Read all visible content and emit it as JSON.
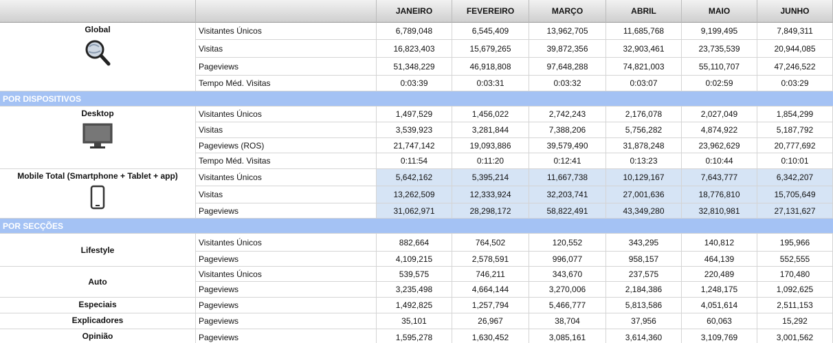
{
  "header": {
    "months": [
      "JANEIRO",
      "FEVEREIRO",
      "MARÇO",
      "ABRIL",
      "MAIO",
      "JUNHO"
    ]
  },
  "blocks": [
    {
      "label": "Global",
      "rows": [
        {
          "metric": "Visitantes Únicos",
          "values": [
            "6,789,048",
            "6,545,409",
            "13,962,705",
            "11,685,768",
            "9,199,495",
            "7,849,311"
          ]
        },
        {
          "metric": "Visitas",
          "values": [
            "16,823,403",
            "15,679,265",
            "39,872,356",
            "32,903,461",
            "23,735,539",
            "20,944,085"
          ]
        },
        {
          "metric": "Pageviews",
          "values": [
            "51,348,229",
            "46,918,808",
            "97,648,288",
            "74,821,003",
            "55,110,707",
            "47,246,522"
          ]
        },
        {
          "metric": "Tempo Méd. Visitas",
          "values": [
            "0:03:39",
            "0:03:31",
            "0:03:32",
            "0:03:07",
            "0:02:59",
            "0:03:29"
          ]
        }
      ]
    },
    {
      "section": "POR DISPOSITIVOS"
    },
    {
      "label": "Desktop",
      "rows": [
        {
          "metric": "Visitantes Únicos",
          "values": [
            "1,497,529",
            "1,456,022",
            "2,742,243",
            "2,176,078",
            "2,027,049",
            "1,854,299"
          ]
        },
        {
          "metric": "Visitas",
          "values": [
            "3,539,923",
            "3,281,844",
            "7,388,206",
            "5,756,282",
            "4,874,922",
            "5,187,792"
          ]
        },
        {
          "metric": "Pageviews (ROS)",
          "values": [
            "21,747,142",
            "19,093,886",
            "39,579,490",
            "31,878,248",
            "23,962,629",
            "20,777,692"
          ]
        },
        {
          "metric": "Tempo Méd. Visitas",
          "values": [
            "0:11:54",
            "0:11:20",
            "0:12:41",
            "0:13:23",
            "0:10:44",
            "0:10:01"
          ]
        }
      ]
    },
    {
      "label": "Mobile Total (Smartphone + Tablet + app)",
      "rows": [
        {
          "metric": "Visitantes Únicos",
          "values": [
            "5,642,162",
            "5,395,214",
            "11,667,738",
            "10,129,167",
            "7,643,777",
            "6,342,207"
          ]
        },
        {
          "metric": "Visitas",
          "values": [
            "13,262,509",
            "12,333,924",
            "32,203,741",
            "27,001,636",
            "18,776,810",
            "15,705,649"
          ]
        },
        {
          "metric": "Pageviews",
          "values": [
            "31,062,971",
            "28,298,172",
            "58,822,491",
            "43,349,280",
            "32,810,981",
            "27,131,627"
          ]
        }
      ]
    },
    {
      "section": "POR SECÇÕES"
    },
    {
      "label": "Lifestyle",
      "rows": [
        {
          "metric": "Visitantes Únicos",
          "values": [
            "882,664",
            "764,502",
            "120,552",
            "343,295",
            "140,812",
            "195,966"
          ]
        },
        {
          "metric": "Pageviews",
          "values": [
            "4,109,215",
            "2,578,591",
            "996,077",
            "958,157",
            "464,139",
            "552,555"
          ]
        }
      ]
    },
    {
      "label": "Auto",
      "rows": [
        {
          "metric": "Visitantes Únicos",
          "values": [
            "539,575",
            "746,211",
            "343,670",
            "237,575",
            "220,489",
            "170,480"
          ]
        },
        {
          "metric": "Pageviews",
          "values": [
            "3,235,498",
            "4,664,144",
            "3,270,006",
            "2,184,386",
            "1,248,175",
            "1,092,625"
          ]
        }
      ]
    },
    {
      "label": "Especiais",
      "rows": [
        {
          "metric": "Pageviews",
          "values": [
            "1,492,825",
            "1,257,794",
            "5,466,777",
            "5,813,586",
            "4,051,614",
            "2,511,153"
          ]
        }
      ]
    },
    {
      "label": "Explicadores",
      "rows": [
        {
          "metric": "Pageviews",
          "values": [
            "35,101",
            "26,967",
            "38,704",
            "37,956",
            "60,063",
            "15,292"
          ]
        }
      ]
    },
    {
      "label": "Opinião",
      "rows": [
        {
          "metric": "Pageviews",
          "values": [
            "1,595,278",
            "1,630,452",
            "3,085,161",
            "3,614,360",
            "3,109,769",
            "3,001,562"
          ]
        }
      ]
    }
  ]
}
